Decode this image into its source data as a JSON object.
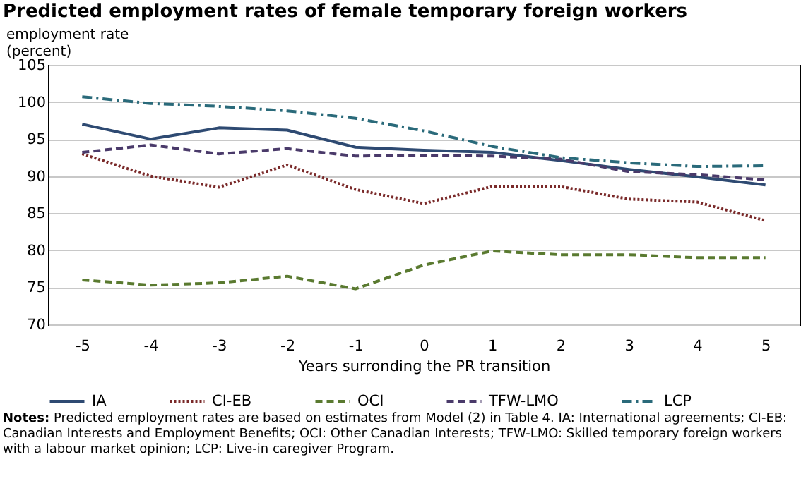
{
  "chart_data": {
    "type": "line",
    "title": "Predicted employment rates of female temporary foreign workers",
    "ylabel": "employment rate\n(percent)",
    "xlabel": "Years surronding the PR transition",
    "categories": [
      "-5",
      "-4",
      "-3",
      "-2",
      "-1",
      "0",
      "1",
      "2",
      "3",
      "4",
      "5"
    ],
    "series": [
      {
        "name": "IA",
        "color": "#2e4a72",
        "line_style": "solid",
        "values": [
          97,
          95,
          96.5,
          96.2,
          93.9,
          93.5,
          93.2,
          92.1,
          90.9,
          89.9,
          88.8
        ]
      },
      {
        "name": "CI-EB",
        "color": "#7a2a2a",
        "line_style": "dotted",
        "values": [
          93,
          90,
          88.5,
          91.5,
          88.2,
          86.3,
          88.6,
          88.6,
          86.9,
          86.5,
          84
        ]
      },
      {
        "name": "OCI",
        "color": "#5a7a30",
        "line_style": "dashed",
        "values": [
          76,
          75.3,
          75.6,
          76.5,
          74.8,
          78,
          79.9,
          79.4,
          79.4,
          79,
          79
        ]
      },
      {
        "name": "TFW-LMO",
        "color": "#4a3a6a",
        "line_style": "dashed",
        "values": [
          93.2,
          94.2,
          93,
          93.7,
          92.7,
          92.8,
          92.7,
          92.3,
          90.6,
          90.2,
          89.5
        ]
      },
      {
        "name": "LCP",
        "color": "#2a6a7a",
        "line_style": "dashdot",
        "values": [
          100.7,
          99.8,
          99.4,
          98.8,
          97.8,
          96.1,
          94,
          92.5,
          91.8,
          91.3,
          91.4
        ]
      }
    ],
    "ylim": [
      70,
      105
    ],
    "yticks": [
      70,
      75,
      80,
      85,
      90,
      95,
      100,
      105
    ],
    "grid": "y",
    "legend": "bottom",
    "annotations": [
      "Notes: Predicted employment rates are based on estimates from Model (2) in Table 4. IA: International agreements; CI-EB: Canadian Interests and Employment Benefits; OCI: Other Canadian Interests; TFW-LMO: Skilled temporary foreign workers with a labour market opinion; LCP: Live-in caregiver Program."
    ]
  }
}
